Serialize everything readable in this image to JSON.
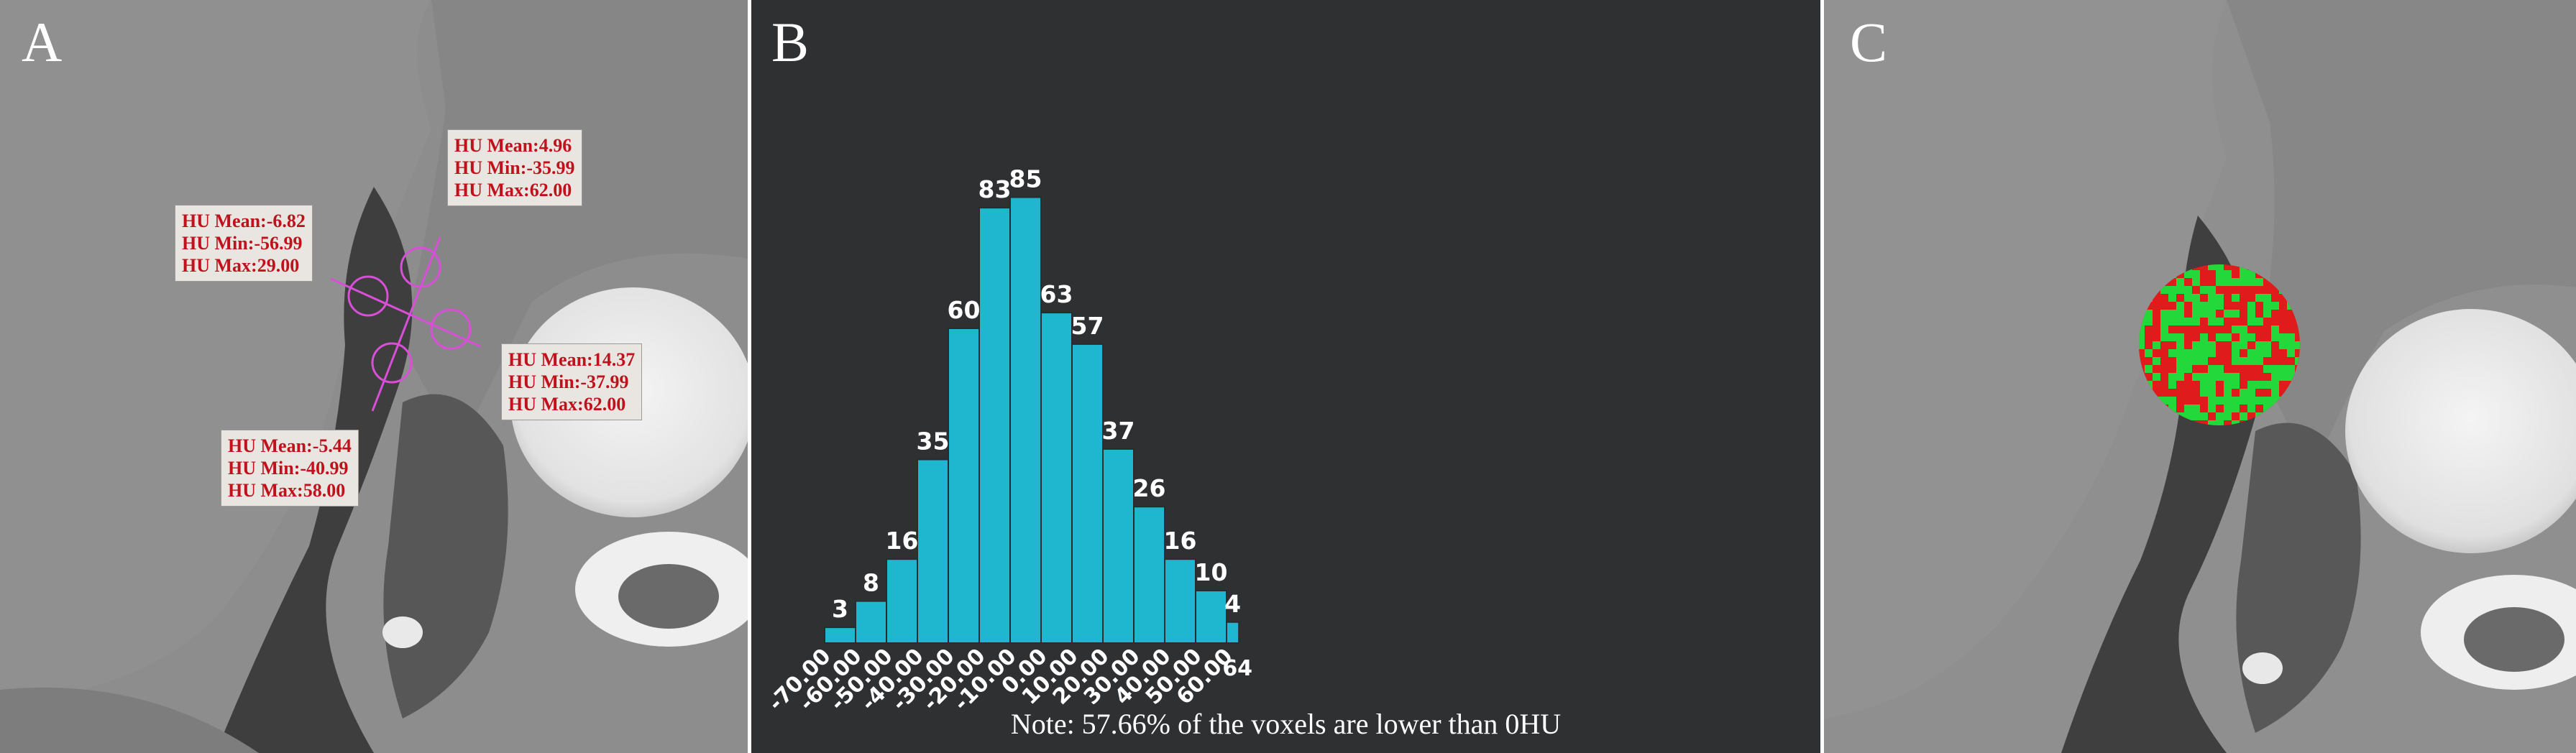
{
  "panels": {
    "a": {
      "letter": "A"
    },
    "b": {
      "letter": "B"
    },
    "c": {
      "letter": "C"
    }
  },
  "roi_stats": [
    {
      "mean": "HU Mean:4.96",
      "min": "HU Min:-35.99",
      "max": "HU Max:62.00"
    },
    {
      "mean": "HU Mean:-6.82",
      "min": "HU Min:-56.99",
      "max": "HU Max:29.00"
    },
    {
      "mean": "HU Mean:14.37",
      "min": "HU Min:-37.99",
      "max": "HU Max:62.00"
    },
    {
      "mean": "HU Mean:-5.44",
      "min": "HU Min:-40.99",
      "max": "HU Max:58.00"
    }
  ],
  "colors": {
    "bar_fill": "#1fb6cf",
    "chart_background": "#2f3032",
    "roi_text": "#c0121c",
    "roi_marker": "#d84fd8",
    "texture_red": "#e01b1b",
    "texture_green": "#22d83a"
  },
  "chart_data": {
    "type": "bar",
    "title": "",
    "xlabel": "",
    "ylabel": "",
    "x_tick_labels": [
      "-70.00",
      "-60.00",
      "-50.00",
      "-40.00",
      "-30.00",
      "-20.00",
      "-10.00",
      "0.00",
      "10.00",
      "20.00",
      "30.00",
      "40.00",
      "50.00",
      "60.00",
      "64"
    ],
    "bins": [
      {
        "from": -70,
        "to": -60,
        "value": 3
      },
      {
        "from": -60,
        "to": -50,
        "value": 8
      },
      {
        "from": -50,
        "to": -40,
        "value": 16
      },
      {
        "from": -40,
        "to": -30,
        "value": 35
      },
      {
        "from": -30,
        "to": -20,
        "value": 60
      },
      {
        "from": -20,
        "to": -10,
        "value": 83
      },
      {
        "from": -10,
        "to": 0,
        "value": 85
      },
      {
        "from": 0,
        "to": 10,
        "value": 63
      },
      {
        "from": 10,
        "to": 20,
        "value": 57
      },
      {
        "from": 20,
        "to": 30,
        "value": 37
      },
      {
        "from": 30,
        "to": 40,
        "value": 26
      },
      {
        "from": 40,
        "to": 50,
        "value": 16
      },
      {
        "from": 50,
        "to": 60,
        "value": 10
      },
      {
        "from": 60,
        "to": 64,
        "value": 4
      }
    ],
    "ylim": [
      0,
      85
    ],
    "grid": false,
    "note": "Note: 57.66% of the voxels are lower than 0HU"
  }
}
